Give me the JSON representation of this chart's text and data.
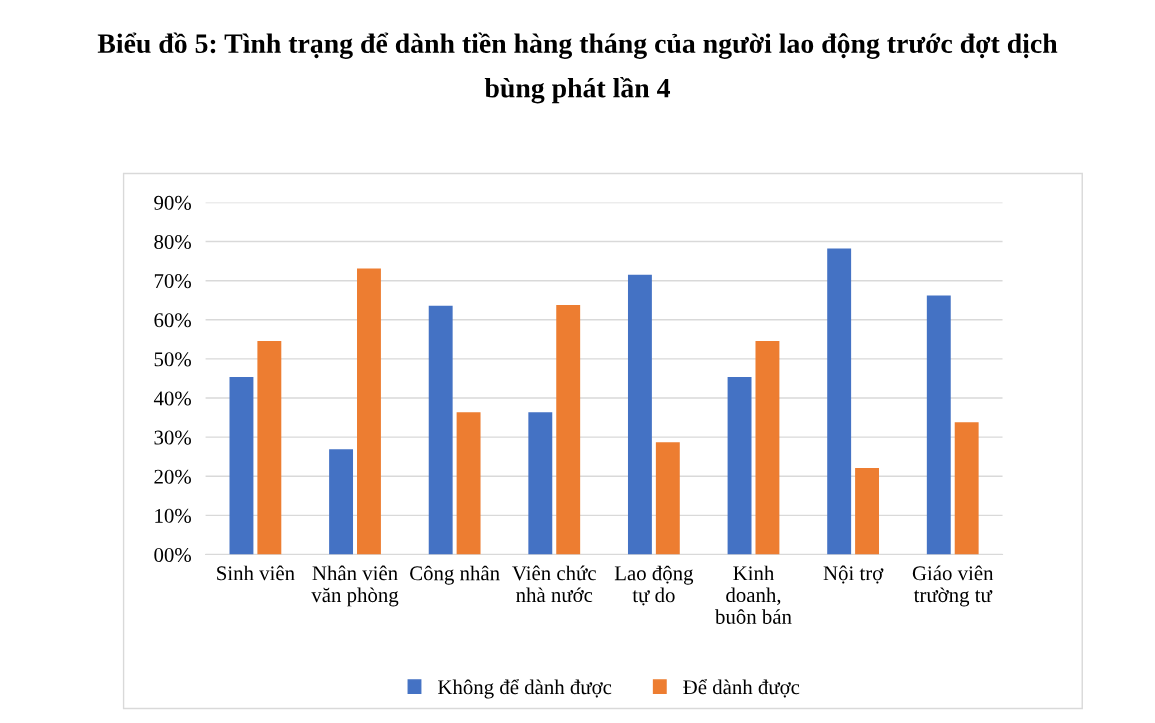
{
  "chart_data": {
    "type": "bar",
    "title": "Biểu đồ 5: Tình trạng để dành tiền hàng tháng của người lao động trước đợt dịch\nbùng phát lần 4",
    "categories": [
      "Sinh viên",
      "Nhân viên\nvăn phòng",
      "Công nhân",
      "Viên chức\nnhà nước",
      "Lao động\ntự do",
      "Kinh\ndoanh,\nbuôn bán",
      "Nội trợ",
      "Giáo viên\ntrường tư"
    ],
    "series": [
      {
        "name": "Không để dành được",
        "color": "#4472c4",
        "values": [
          45.4,
          26.9,
          63.6,
          36.4,
          71.5,
          45.4,
          78.2,
          66.2
        ]
      },
      {
        "name": "Để dành được",
        "color": "#ed7d31",
        "values": [
          54.6,
          73.1,
          36.4,
          63.8,
          28.7,
          54.6,
          22.1,
          33.8
        ]
      }
    ],
    "ylim": [
      0,
      90
    ],
    "yticks": [
      {
        "value": 0,
        "label": "00%"
      },
      {
        "value": 10,
        "label": "10%"
      },
      {
        "value": 20,
        "label": "20%"
      },
      {
        "value": 30,
        "label": "30%"
      },
      {
        "value": 40,
        "label": "40%"
      },
      {
        "value": 50,
        "label": "50%"
      },
      {
        "value": 60,
        "label": "60%"
      },
      {
        "value": 70,
        "label": "70%"
      },
      {
        "value": 80,
        "label": "80%"
      },
      {
        "value": 90,
        "label": "90%"
      }
    ],
    "grid": "y",
    "legend": "bottom"
  }
}
